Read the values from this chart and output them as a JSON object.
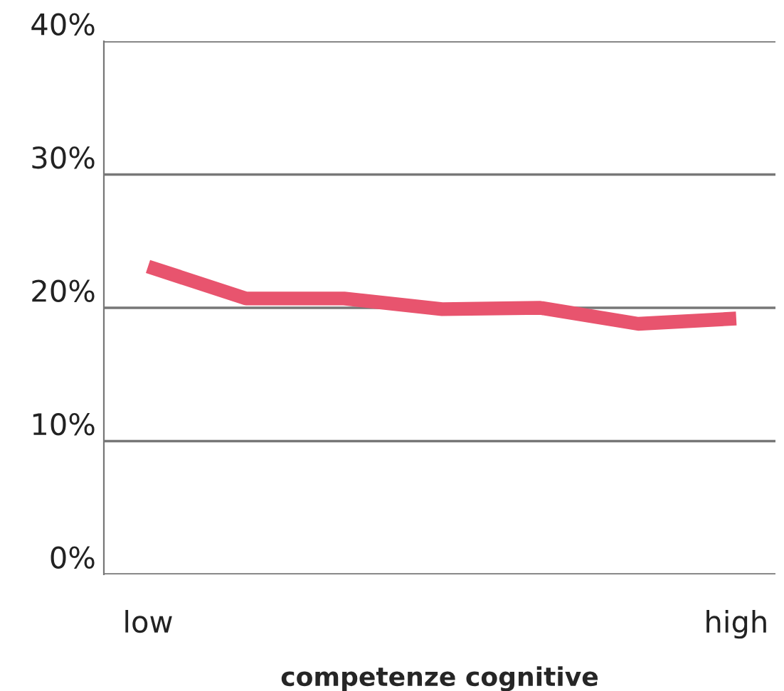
{
  "chart_data": {
    "type": "line",
    "xlabel": "competenze cognitive",
    "categories": [
      "low",
      null,
      null,
      null,
      null,
      null,
      "high"
    ],
    "series": [
      {
        "color": "#e8546e",
        "values": [
          23.1,
          20.7,
          20.7,
          19.9,
          20.0,
          18.8,
          19.2
        ]
      }
    ],
    "ylim": [
      0,
      40
    ],
    "yticks": [
      {
        "value": 0,
        "label": "0%"
      },
      {
        "value": 10,
        "label": "10%"
      },
      {
        "value": 20,
        "label": "20%"
      },
      {
        "value": 30,
        "label": "30%"
      },
      {
        "value": 40,
        "label": "40%"
      }
    ],
    "grid": "y"
  }
}
